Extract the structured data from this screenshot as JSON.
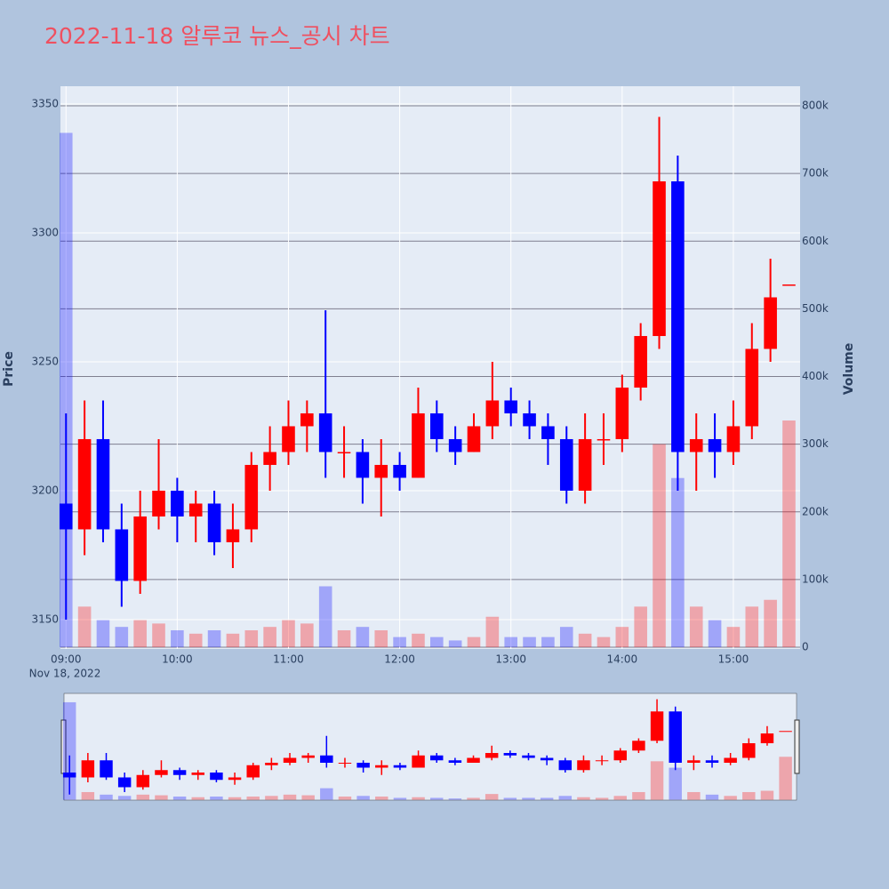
{
  "chart_data": {
    "type": "candlestick",
    "title": "2022-11-18 알루코 뉴스_공시 차트",
    "date_label": "Nov 18, 2022",
    "y_title": "Price",
    "y2_title": "Volume",
    "increasing_color": "#ff0000",
    "decreasing_color": "#0000ff",
    "x": [
      "09:00",
      "09:10",
      "09:20",
      "09:30",
      "09:40",
      "09:50",
      "10:00",
      "10:10",
      "10:20",
      "10:30",
      "10:40",
      "10:50",
      "11:00",
      "11:10",
      "11:20",
      "11:30",
      "11:40",
      "11:50",
      "12:00",
      "12:10",
      "12:20",
      "12:30",
      "12:40",
      "12:50",
      "13:00",
      "13:10",
      "13:20",
      "13:30",
      "13:40",
      "13:50",
      "14:00",
      "14:10",
      "14:20",
      "14:30",
      "14:40",
      "14:50",
      "15:00",
      "15:10",
      "15:20",
      "15:30"
    ],
    "open": [
      3195,
      3185,
      3220,
      3185,
      3165,
      3190,
      3200,
      3190,
      3195,
      3180,
      3185,
      3210,
      3215,
      3225,
      3230,
      3215,
      3215,
      3205,
      3210,
      3205,
      3230,
      3220,
      3215,
      3225,
      3235,
      3230,
      3225,
      3220,
      3200,
      3220,
      3220,
      3240,
      3260,
      3320,
      3215,
      3220,
      3215,
      3225,
      3255,
      3280
    ],
    "high": [
      3230,
      3235,
      3235,
      3195,
      3200,
      3220,
      3205,
      3200,
      3200,
      3195,
      3215,
      3225,
      3235,
      3235,
      3270,
      3225,
      3220,
      3220,
      3215,
      3240,
      3235,
      3225,
      3230,
      3250,
      3240,
      3235,
      3230,
      3225,
      3230,
      3230,
      3245,
      3265,
      3345,
      3330,
      3230,
      3230,
      3235,
      3265,
      3290,
      3280
    ],
    "low": [
      3150,
      3175,
      3180,
      3155,
      3160,
      3185,
      3180,
      3180,
      3175,
      3170,
      3180,
      3200,
      3210,
      3215,
      3205,
      3205,
      3195,
      3190,
      3200,
      3205,
      3215,
      3210,
      3215,
      3220,
      3225,
      3220,
      3210,
      3195,
      3195,
      3210,
      3215,
      3235,
      3255,
      3200,
      3200,
      3205,
      3210,
      3220,
      3250,
      3280
    ],
    "close": [
      3185,
      3220,
      3185,
      3165,
      3190,
      3200,
      3190,
      3195,
      3180,
      3185,
      3210,
      3215,
      3225,
      3230,
      3215,
      3215,
      3205,
      3210,
      3205,
      3230,
      3220,
      3215,
      3225,
      3235,
      3230,
      3225,
      3220,
      3200,
      3220,
      3220,
      3240,
      3260,
      3320,
      3215,
      3220,
      3215,
      3225,
      3255,
      3275,
      3280
    ],
    "volume": [
      760000,
      60000,
      40000,
      30000,
      40000,
      35000,
      25000,
      20000,
      25000,
      20000,
      25000,
      30000,
      40000,
      35000,
      90000,
      25000,
      30000,
      25000,
      15000,
      20000,
      15000,
      10000,
      15000,
      45000,
      15000,
      15000,
      15000,
      30000,
      20000,
      15000,
      30000,
      60000,
      300000,
      250000,
      60000,
      40000,
      30000,
      60000,
      70000,
      335000
    ],
    "xlim": [
      "08:57",
      "15:36"
    ],
    "xticks": [
      "09:00",
      "10:00",
      "11:00",
      "12:00",
      "13:00",
      "14:00",
      "15:00"
    ],
    "ylim": [
      3138.6,
      3356.9
    ],
    "yticks": [
      3150,
      3200,
      3250,
      3300,
      3350
    ],
    "y2lim": [
      -2600,
      828900
    ],
    "y2ticks": [
      0,
      {
        "value": 100000,
        "label": "100k"
      },
      {
        "value": 200000,
        "label": "200k"
      },
      {
        "value": 300000,
        "label": "300k"
      },
      {
        "value": 400000,
        "label": "400k"
      },
      {
        "value": 500000,
        "label": "500k"
      },
      {
        "value": 600000,
        "label": "600k"
      },
      {
        "value": 700000,
        "label": "700k"
      },
      {
        "value": 800000,
        "label": "800k"
      }
    ],
    "grid": true,
    "rangeslider": true
  }
}
